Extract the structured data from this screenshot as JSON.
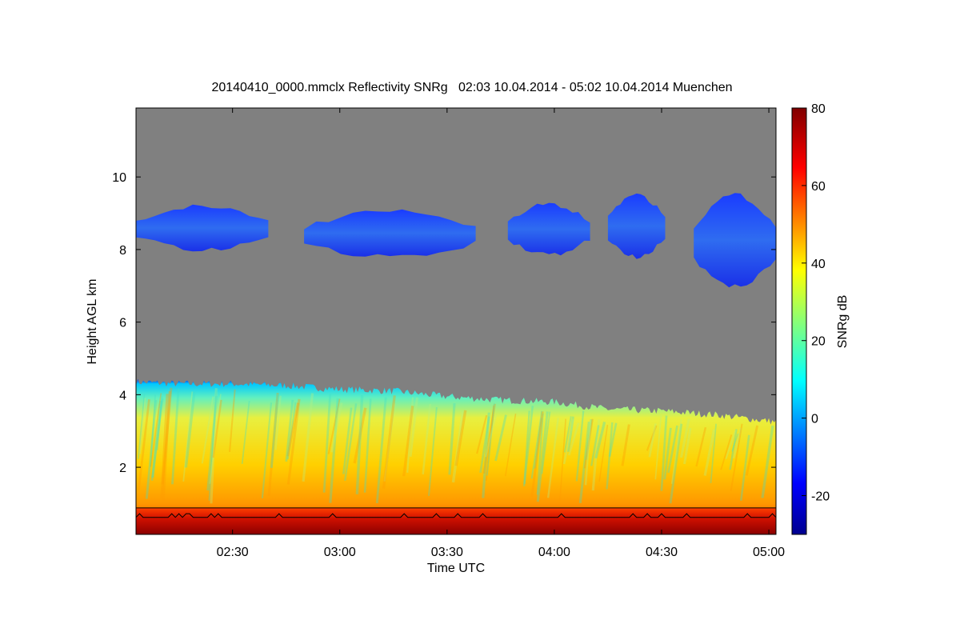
{
  "chart_data": {
    "type": "heatmap",
    "title": "20140410_0000.mmclx Reflectivity SNRg   02:03 10.04.2014 - 05:02 10.04.2014 Muenchen",
    "xlabel": "Time UTC",
    "ylabel": "Height AGL km",
    "colorbar_label": "SNRg dB",
    "x_range": [
      "02:03",
      "05:02"
    ],
    "x_ticks": [
      "02:30",
      "03:00",
      "03:30",
      "04:00",
      "04:30",
      "05:00"
    ],
    "y_range_km": [
      0.15,
      11.9
    ],
    "y_ticks": [
      2,
      4,
      6,
      8,
      10
    ],
    "colorbar_range_db": [
      -30,
      80
    ],
    "colorbar_ticks": [
      -20,
      0,
      20,
      40,
      60,
      80
    ],
    "colormap": "jet",
    "background_color": "#808080",
    "low_echo_top_km": [
      {
        "time": "02:03",
        "top": 4.35
      },
      {
        "time": "02:15",
        "top": 4.3
      },
      {
        "time": "02:30",
        "top": 4.3
      },
      {
        "time": "02:45",
        "top": 4.25
      },
      {
        "time": "03:00",
        "top": 4.15
      },
      {
        "time": "03:15",
        "top": 4.1
      },
      {
        "time": "03:30",
        "top": 3.95
      },
      {
        "time": "03:45",
        "top": 3.85
      },
      {
        "time": "04:00",
        "top": 3.8
      },
      {
        "time": "04:15",
        "top": 3.6
      },
      {
        "time": "04:30",
        "top": 3.55
      },
      {
        "time": "04:45",
        "top": 3.45
      },
      {
        "time": "05:02",
        "top": 3.25
      }
    ],
    "upper_cloud_patches": [
      {
        "start": "02:03",
        "end": "02:40",
        "base_km": 8.0,
        "top_km": 9.2
      },
      {
        "start": "02:50",
        "end": "03:38",
        "base_km": 7.8,
        "top_km": 9.05
      },
      {
        "start": "03:47",
        "end": "04:10",
        "base_km": 7.85,
        "top_km": 9.25
      },
      {
        "start": "04:15",
        "end": "04:31",
        "base_km": 7.8,
        "top_km": 9.5
      },
      {
        "start": "04:39",
        "end": "05:02",
        "base_km": 7.0,
        "top_km": 9.5
      }
    ]
  }
}
